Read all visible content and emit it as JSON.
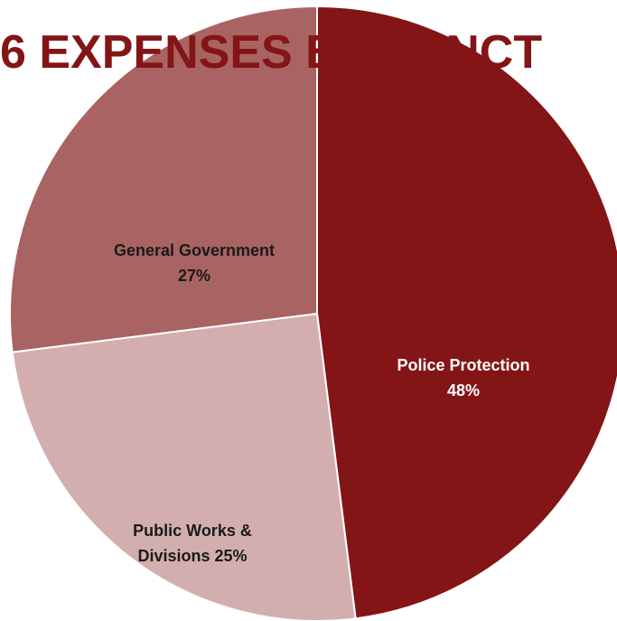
{
  "chart_data": {
    "type": "pie",
    "title": "6 EXPENSES BY FUNCT",
    "slices": [
      {
        "label_lines": [
          "Police Protection",
          "48%"
        ],
        "value": 48,
        "color": "#841517",
        "text_color": "#ffffff"
      },
      {
        "label_lines": [
          "Public Works &",
          "Divisions 25%"
        ],
        "value": 25,
        "color": "#d3aeae",
        "text_color": "#1a1a1a"
      },
      {
        "label_lines": [
          "General Government",
          "27%"
        ],
        "value": 27,
        "color": "#a96362",
        "text_color": "#1a1a1a"
      }
    ],
    "title_color": "#841517"
  }
}
